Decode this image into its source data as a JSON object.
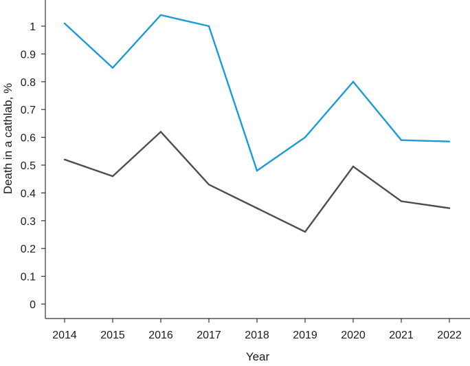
{
  "chart_data": {
    "type": "line",
    "xlabel": "Year",
    "ylabel": "Death in a cathlab, %",
    "ylim": [
      0,
      1.05
    ],
    "yticks": [
      "0",
      "0.1",
      "0.2",
      "0.3",
      "0.4",
      "0.5",
      "0.6",
      "0.7",
      "0.8",
      "0.9",
      "1"
    ],
    "categories": [
      "2014",
      "2015",
      "2016",
      "2017",
      "2018",
      "2019",
      "2020",
      "2021",
      "2022"
    ],
    "grid": false,
    "legend": "none",
    "series": [
      {
        "color": "#1a9ad6",
        "values": [
          1.01,
          0.85,
          1.04,
          1.0,
          0.48,
          0.6,
          0.8,
          0.59,
          0.585
        ]
      },
      {
        "color": "#4d4d4d",
        "values": [
          0.52,
          0.46,
          0.62,
          0.43,
          0.345,
          0.26,
          0.495,
          0.37,
          0.345
        ]
      }
    ]
  }
}
